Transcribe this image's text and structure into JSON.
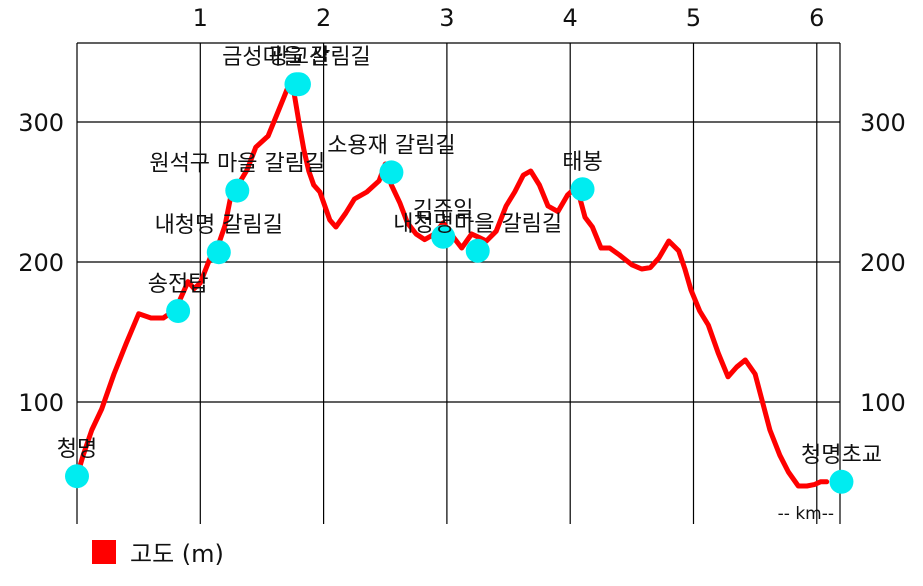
{
  "chart_data": {
    "type": "line",
    "x_unit_label": "-- km--",
    "xlim": [
      0,
      6.25
    ],
    "ylim": [
      20,
      345
    ],
    "x_ticks": [
      1,
      2,
      3,
      4,
      5,
      6
    ],
    "y_ticks": [
      100,
      200,
      300
    ],
    "grid": true,
    "legend_position": "bottom-left",
    "series": [
      {
        "name": "고도 (m)",
        "color": "#ff0000",
        "x": [
          0,
          0.05,
          0.12,
          0.2,
          0.3,
          0.4,
          0.5,
          0.6,
          0.7,
          0.8,
          0.9,
          0.95,
          1.0,
          1.08,
          1.13,
          1.2,
          1.25,
          1.3,
          1.38,
          1.45,
          1.55,
          1.62,
          1.68,
          1.72,
          1.76,
          1.8,
          1.84,
          1.88,
          1.92,
          1.97,
          2.05,
          2.1,
          2.18,
          2.25,
          2.35,
          2.45,
          2.5,
          2.55,
          2.62,
          2.68,
          2.75,
          2.82,
          2.9,
          2.97,
          3.05,
          3.12,
          3.2,
          3.25,
          3.32,
          3.4,
          3.48,
          3.55,
          3.62,
          3.68,
          3.75,
          3.82,
          3.9,
          3.98,
          4.03,
          4.08,
          4.12,
          4.18,
          4.25,
          4.32,
          4.4,
          4.5,
          4.58,
          4.65,
          4.72,
          4.8,
          4.88,
          4.93,
          4.98,
          5.05,
          5.12,
          5.2,
          5.28,
          5.35,
          5.42,
          5.5,
          5.56,
          5.62,
          5.7,
          5.77,
          5.85,
          5.92,
          5.98,
          6.03,
          6.08
        ],
        "values": [
          47,
          62,
          80,
          95,
          120,
          142,
          163,
          160,
          160,
          166,
          186,
          181,
          185,
          203,
          208,
          226,
          248,
          254,
          266,
          282,
          290,
          305,
          318,
          327,
          321,
          300,
          280,
          265,
          255,
          250,
          230,
          225,
          235,
          245,
          250,
          258,
          270,
          255,
          242,
          228,
          220,
          216,
          220,
          228,
          218,
          210,
          220,
          218,
          215,
          222,
          240,
          250,
          262,
          265,
          255,
          240,
          236,
          248,
          252,
          245,
          232,
          225,
          210,
          210,
          205,
          198,
          195,
          196,
          203,
          215,
          208,
          195,
          180,
          165,
          155,
          135,
          118,
          125,
          130,
          120,
          100,
          80,
          62,
          50,
          40,
          40,
          41,
          43,
          43
        ]
      }
    ],
    "points": [
      {
        "name": "청명",
        "x": 0.0,
        "y": 47,
        "label_above": true
      },
      {
        "name": "송전탑",
        "x": 0.82,
        "y": 165,
        "label_above": true
      },
      {
        "name": "내청명 갈림길",
        "x": 1.15,
        "y": 207,
        "label_above": true
      },
      {
        "name": "원석구 마을 갈림길",
        "x": 1.3,
        "y": 251,
        "label_above": true
      },
      {
        "name": "금성마을 갈림길",
        "x": 1.78,
        "y": 327,
        "label_above": true
      },
      {
        "name": "광교산",
        "x": 1.8,
        "y": 327,
        "label_above": true
      },
      {
        "name": "소용재 갈림길",
        "x": 2.55,
        "y": 264,
        "label_above": true
      },
      {
        "name": "김주일",
        "x": 2.97,
        "y": 218,
        "label_above": true
      },
      {
        "name": "내청명마을 갈림길",
        "x": 3.25,
        "y": 208,
        "label_above": true
      },
      {
        "name": "태봉",
        "x": 4.1,
        "y": 252,
        "label_above": true
      },
      {
        "name": "청명초교",
        "x": 6.2,
        "y": 43,
        "label_above": true
      }
    ]
  },
  "legend": {
    "label": "고도 (m)",
    "color": "#ff0000"
  },
  "colors": {
    "line": "#ff0000",
    "marker": "#00ecf0",
    "grid": "#000000"
  }
}
